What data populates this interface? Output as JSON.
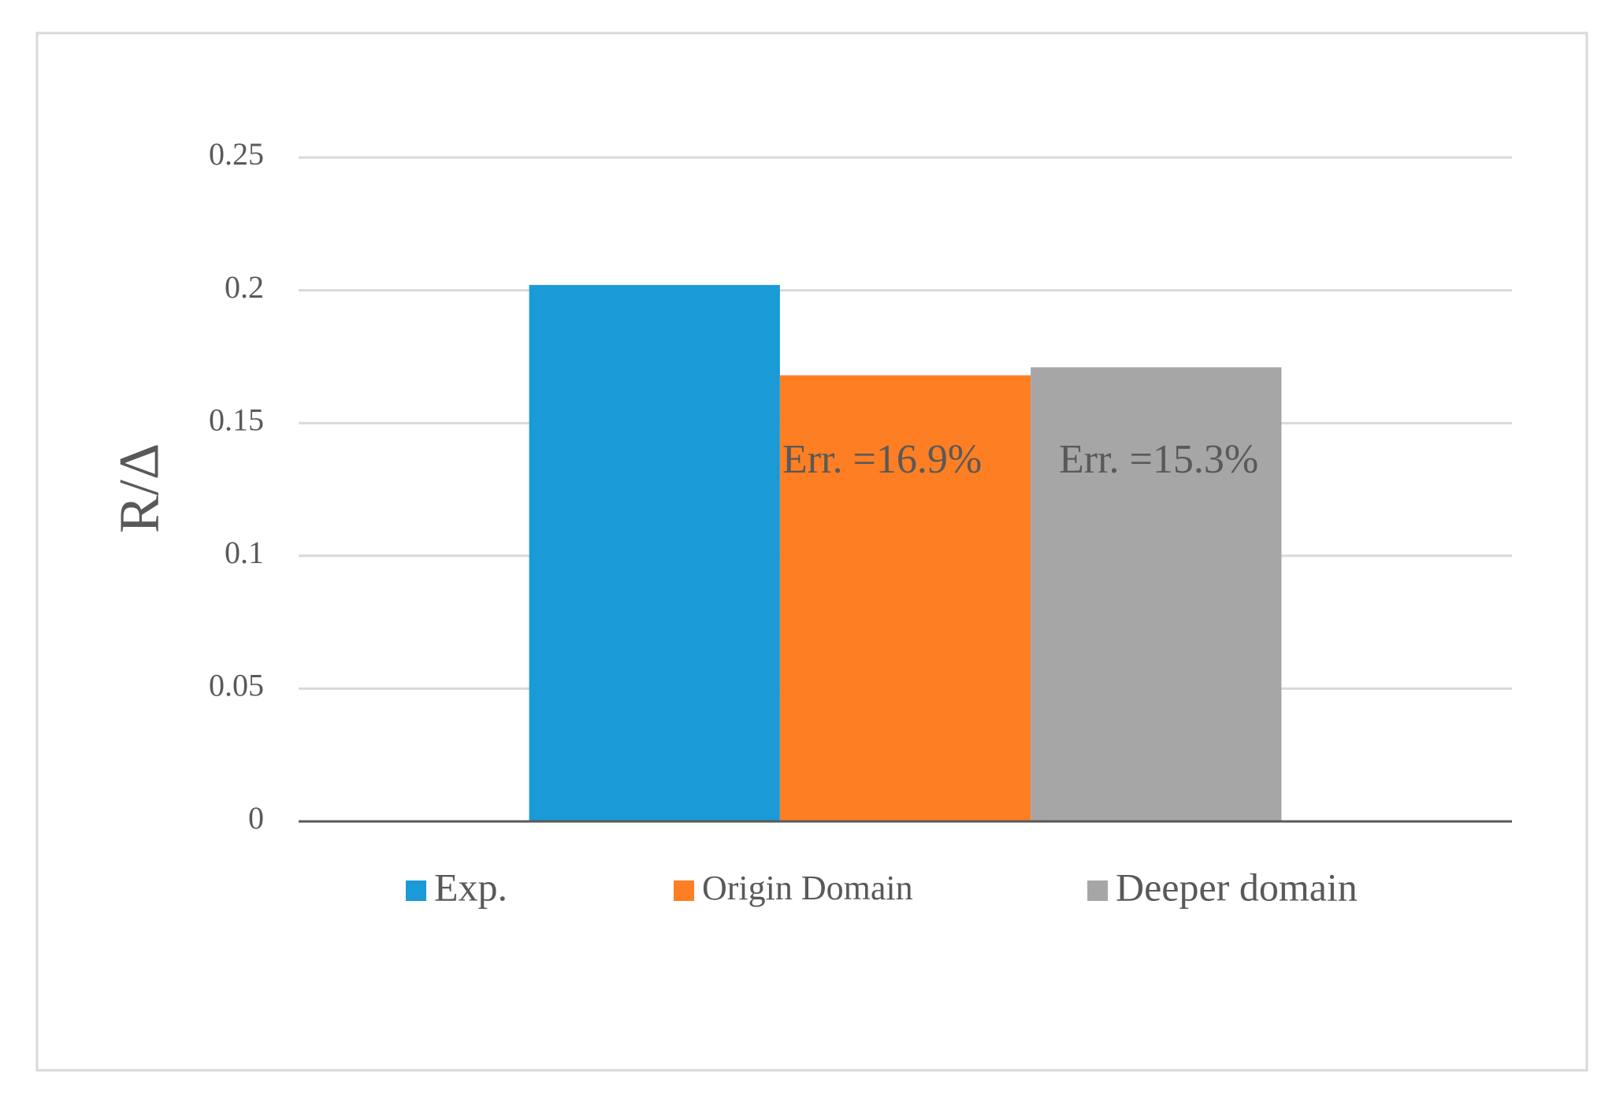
{
  "chart_data": {
    "type": "bar",
    "y_label": "R/Δ",
    "categories": [
      null
    ],
    "series": [
      {
        "name": "Exp.",
        "color": "#1a9ad6",
        "values": [
          0.202
        ]
      },
      {
        "name": "Origin Domain",
        "color": "#fd7e23",
        "values": [
          0.168
        ]
      },
      {
        "name": "Deeper domain",
        "color": "#a6a6a6",
        "values": [
          0.171
        ]
      }
    ],
    "annotations": [
      "Err. =16.9%",
      "Err. =15.3%"
    ],
    "ylim": [
      0,
      0.25
    ],
    "yticks": [
      0,
      0.05,
      0.1,
      0.15,
      0.2,
      0.25
    ],
    "grid": true,
    "legend": "bottom"
  }
}
